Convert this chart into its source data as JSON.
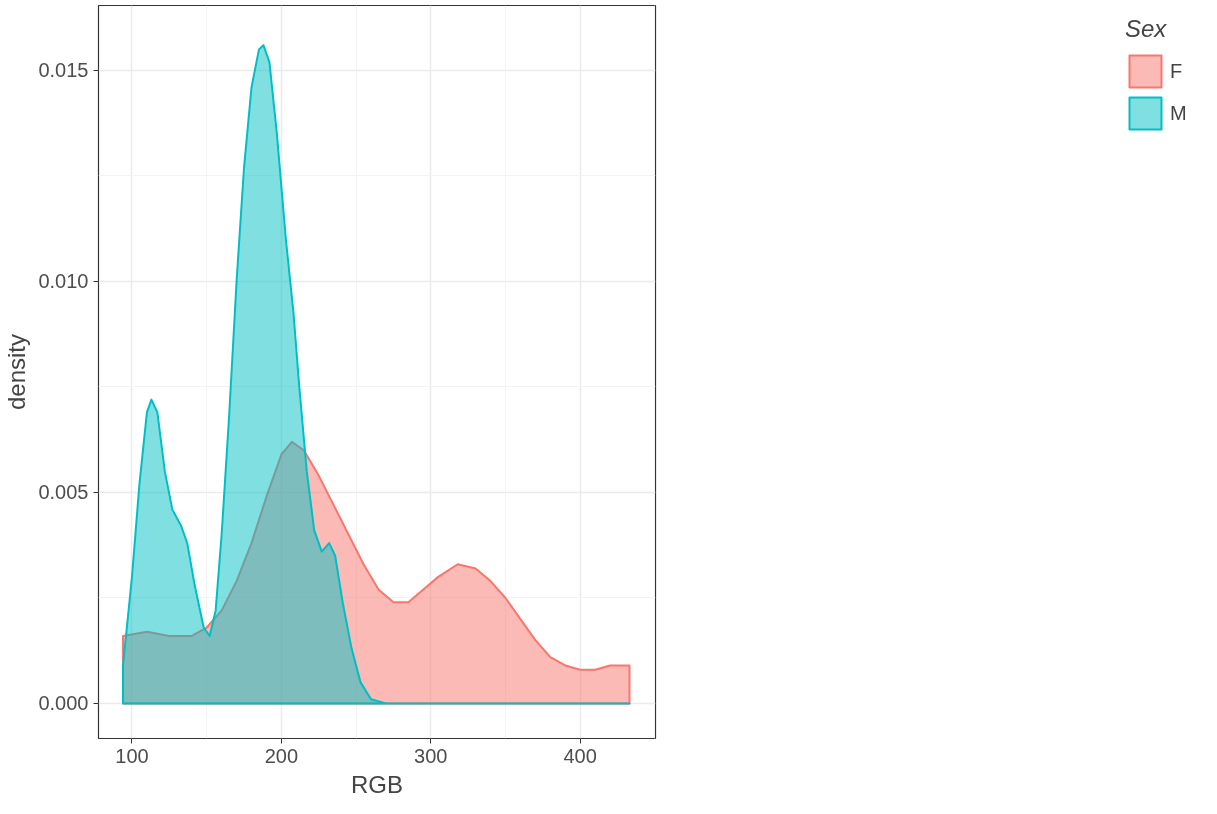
{
  "chart_data": {
    "type": "area",
    "xlabel": "RGB",
    "ylabel": "density",
    "legend_title": "Sex",
    "legend": "right",
    "grid": true,
    "xlim": [
      77.6,
      450.4
    ],
    "ylim": [
      -0.00083,
      0.01654
    ],
    "xticks": [
      100,
      200,
      300,
      400
    ],
    "yticks": [
      {
        "value": 0,
        "label": "0.000"
      },
      {
        "value": 0.005,
        "label": "0.005"
      },
      {
        "value": 0.01,
        "label": "0.010"
      },
      {
        "value": 0.015,
        "label": "0.015"
      }
    ],
    "series": [
      {
        "name": "F",
        "color": "#f8766d",
        "x": [
          94,
          110,
          125,
          140,
          150,
          160,
          170,
          180,
          190,
          200,
          207,
          215,
          225,
          235,
          245,
          255,
          265,
          275,
          285,
          295,
          305,
          318,
          330,
          340,
          350,
          360,
          370,
          380,
          390,
          400,
          410,
          420,
          433
        ],
        "values": [
          0.0016,
          0.0017,
          0.0016,
          0.0016,
          0.0018,
          0.0022,
          0.0029,
          0.0038,
          0.0049,
          0.0059,
          0.0062,
          0.006,
          0.0054,
          0.0047,
          0.004,
          0.0033,
          0.0027,
          0.0024,
          0.0024,
          0.0027,
          0.003,
          0.0033,
          0.0032,
          0.0029,
          0.0025,
          0.002,
          0.0015,
          0.0011,
          0.0009,
          0.0008,
          0.0008,
          0.0009,
          0.0009
        ]
      },
      {
        "name": "M",
        "color": "#00bfc4",
        "x": [
          94,
          100,
          105,
          110,
          113,
          117,
          122,
          127,
          133,
          137,
          142,
          148,
          152,
          156,
          160,
          165,
          170,
          175,
          180,
          185,
          188,
          192,
          197,
          203,
          208,
          212,
          217,
          222,
          227,
          232,
          236,
          241,
          247,
          253,
          260,
          270,
          433
        ],
        "values": [
          0.0009,
          0.003,
          0.0052,
          0.0069,
          0.0072,
          0.0069,
          0.0055,
          0.0046,
          0.0042,
          0.0038,
          0.0028,
          0.0018,
          0.0016,
          0.0022,
          0.004,
          0.0068,
          0.01,
          0.0127,
          0.0146,
          0.0155,
          0.0156,
          0.0152,
          0.0135,
          0.011,
          0.0093,
          0.0075,
          0.0055,
          0.0041,
          0.0036,
          0.0038,
          0.0035,
          0.0024,
          0.0013,
          0.0005,
          0.0001,
          0,
          0
        ]
      }
    ]
  }
}
